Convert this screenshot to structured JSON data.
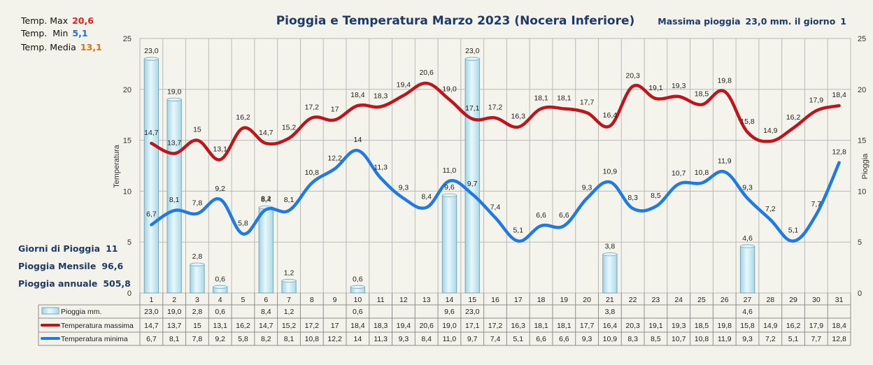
{
  "header": {
    "title": "Pioggia e Temperatura Marzo 2023 (Nocera Inferiore)",
    "max_rain_label": "Massima pioggia",
    "max_rain_value": "23,0 mm. il giorno",
    "max_rain_day": "1"
  },
  "temp_stats": [
    {
      "label": "Temp. Max",
      "value": "20,6",
      "color": "#e0201b"
    },
    {
      "label": "Temp.  Min",
      "value": "5,1",
      "color": "#1e6fd9"
    },
    {
      "label": "Temp. Media",
      "value": "13,1",
      "color": "#e07010"
    }
  ],
  "rain_stats": [
    {
      "label": "Giorni di Pioggia",
      "value": "11"
    },
    {
      "label": "Pioggia Mensile",
      "value": "96,6"
    },
    {
      "label": "Pioggia annuale",
      "value": "505,8"
    }
  ],
  "colors": {
    "bar_fill": "#c6ecf7",
    "bar_stroke": "#7aa7b8",
    "tmax": "#c0141a",
    "tmin": "#1f7ae8",
    "grid": "#b9b9b9",
    "plot_bg": "#f4f4ed"
  },
  "chart_data": {
    "type": "bar+line",
    "xlabel": "",
    "ylabel_left": "Temperatura",
    "ylabel_right": "Pioggia",
    "ylim": [
      0,
      25
    ],
    "yticks": [
      0,
      5,
      10,
      15,
      20,
      25
    ],
    "grid": true,
    "categories": [
      "1",
      "2",
      "3",
      "4",
      "5",
      "6",
      "7",
      "8",
      "9",
      "10",
      "11",
      "12",
      "13",
      "14",
      "15",
      "16",
      "17",
      "18",
      "19",
      "20",
      "21",
      "22",
      "23",
      "24",
      "25",
      "26",
      "27",
      "28",
      "29",
      "30",
      "31"
    ],
    "series": [
      {
        "name": "Pioggia mm.",
        "kind": "bar",
        "values": [
          23.0,
          19.0,
          2.8,
          0.6,
          null,
          8.4,
          1.2,
          null,
          null,
          0.6,
          null,
          null,
          null,
          9.6,
          23.0,
          null,
          null,
          null,
          null,
          null,
          3.8,
          null,
          null,
          null,
          null,
          null,
          4.6,
          null,
          null,
          null,
          null
        ],
        "labels": [
          "23,0",
          "19,0",
          "2,8",
          "0,6",
          "",
          "8,4",
          "1,2",
          "",
          "",
          "0,6",
          "",
          "",
          "",
          "9,6",
          "23,0",
          "",
          "",
          "",
          "",
          "",
          "3,8",
          "",
          "",
          "",
          "",
          "",
          "4,6",
          "",
          "",
          "",
          ""
        ]
      },
      {
        "name": "Temperatura massima",
        "kind": "line",
        "values": [
          14.7,
          13.7,
          15,
          13.1,
          16.2,
          14.7,
          15.2,
          17.2,
          17,
          18.4,
          18.3,
          19.4,
          20.6,
          19.0,
          17.1,
          17.2,
          16.3,
          18.1,
          18.1,
          17.7,
          16.4,
          20.3,
          19.1,
          19.3,
          18.5,
          19.8,
          15.8,
          14.9,
          16.2,
          17.9,
          18.4
        ],
        "labels": [
          "14,7",
          "13,7",
          "15",
          "13,1",
          "16,2",
          "14,7",
          "15,2",
          "17,2",
          "17",
          "18,4",
          "18,3",
          "19,4",
          "20,6",
          "19,0",
          "17,1",
          "17,2",
          "16,3",
          "18,1",
          "18,1",
          "17,7",
          "16,4",
          "20,3",
          "19,1",
          "19,3",
          "18,5",
          "19,8",
          "15,8",
          "14,9",
          "16,2",
          "17,9",
          "18,4"
        ]
      },
      {
        "name": "Temperatura minima",
        "kind": "line",
        "values": [
          6.7,
          8.1,
          7.8,
          9.2,
          5.8,
          8.2,
          8.1,
          10.8,
          12.2,
          14,
          11.3,
          9.3,
          8.4,
          11.0,
          9.7,
          7.4,
          5.1,
          6.6,
          6.6,
          9.3,
          10.9,
          8.3,
          8.5,
          10.7,
          10.8,
          11.9,
          9.3,
          7.2,
          5.1,
          7.7,
          12.8
        ],
        "labels": [
          "6,7",
          "8,1",
          "7,8",
          "9,2",
          "5,8",
          "8,2",
          "8,1",
          "10,8",
          "12,2",
          "14",
          "11,3",
          "9,3",
          "8,4",
          "11,0",
          "9,7",
          "7,4",
          "5,1",
          "6,6",
          "6,6",
          "9,3",
          "10,9",
          "8,3",
          "8,5",
          "10,7",
          "10,8",
          "11,9",
          "9,3",
          "7,2",
          "5,1",
          "7,7",
          "12,8"
        ]
      }
    ]
  }
}
